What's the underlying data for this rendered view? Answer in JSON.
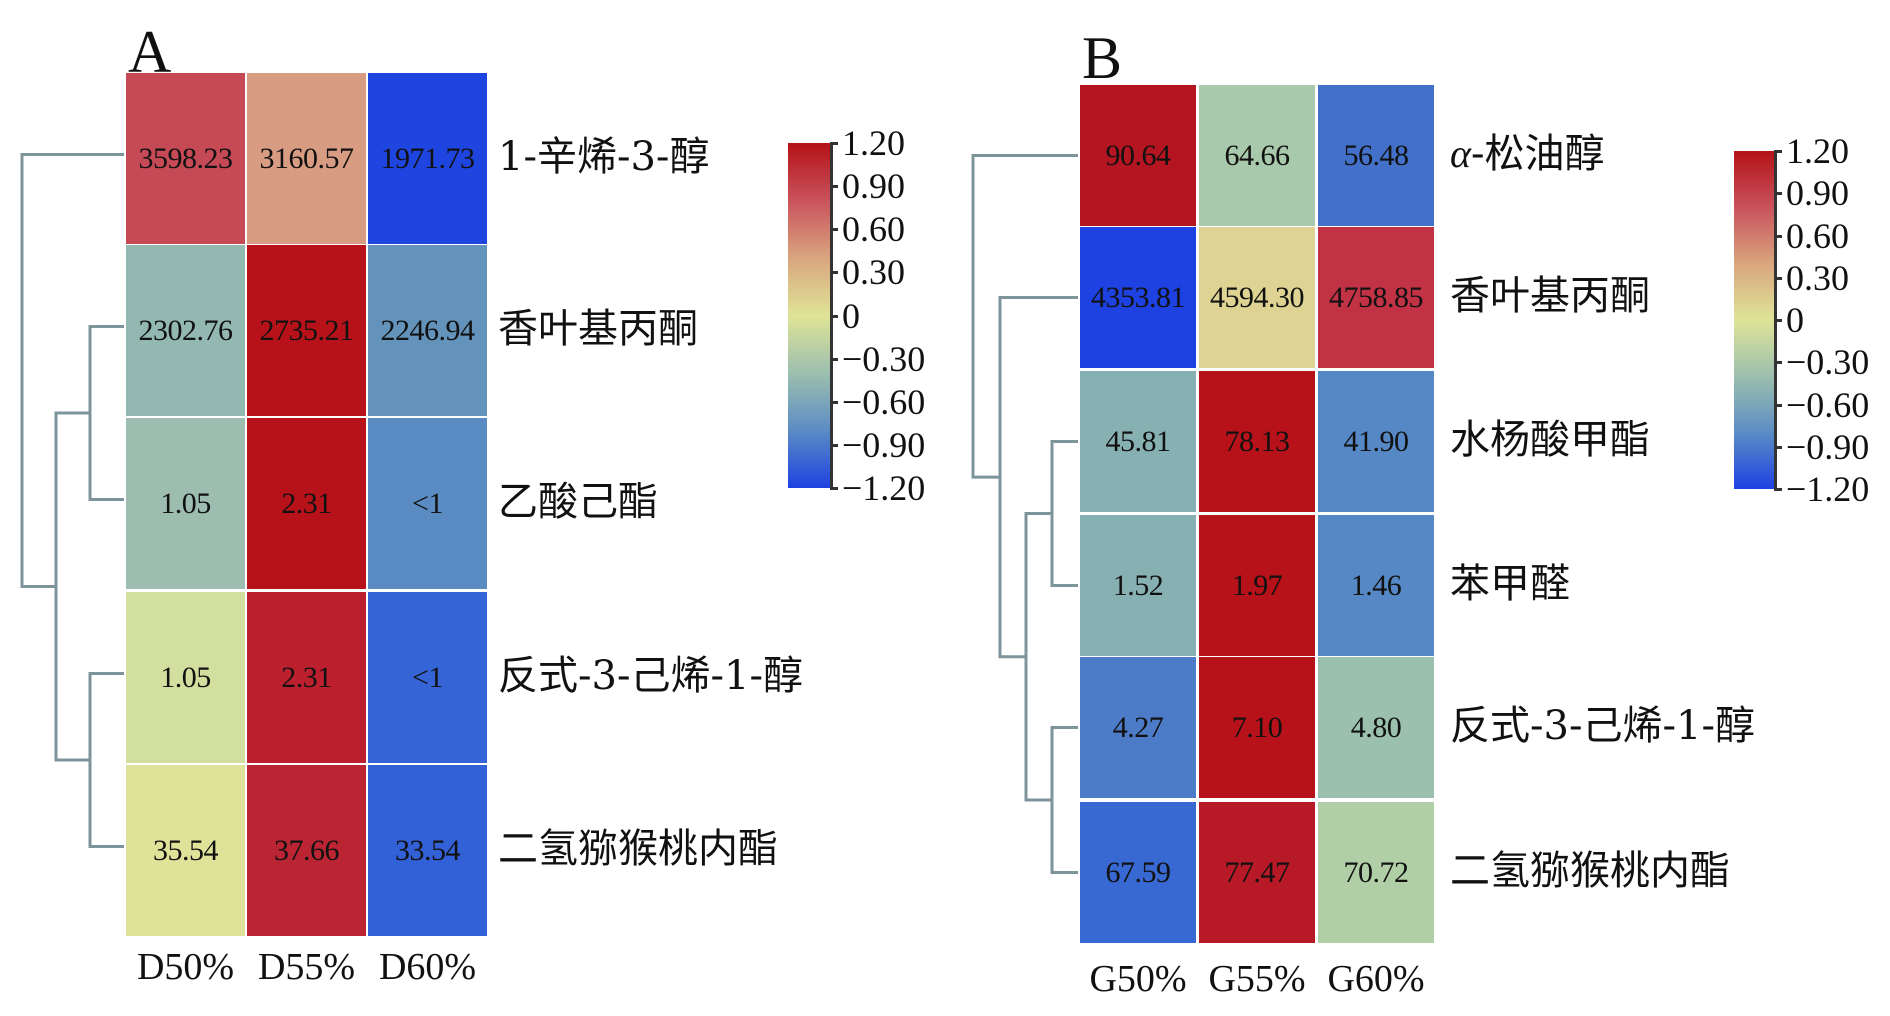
{
  "chart_data": [
    {
      "type": "heatmap",
      "panel": "A",
      "title": "A",
      "columns": [
        "D50%",
        "D55%",
        "D60%"
      ],
      "rows": [
        "1-辛烯-3-醇",
        "香叶基丙酮",
        "乙酸己酯",
        "反式-3-己烯-1-醇",
        "二氢猕猴桃内酯"
      ],
      "values": [
        [
          "3598.23",
          "3160.57",
          "1971.73"
        ],
        [
          "2302.76",
          "2735.21",
          "2246.94"
        ],
        [
          "1.05",
          "2.31",
          "<1"
        ],
        [
          "1.05",
          "2.31",
          "<1"
        ],
        [
          "35.54",
          "37.66",
          "33.54"
        ]
      ],
      "cell_colors": [
        [
          "#c54a56",
          "#d89c82",
          "#1f45e0"
        ],
        [
          "#92b8b1",
          "#b71219",
          "#6393bb"
        ],
        [
          "#9cbdb0",
          "#b71219",
          "#5a8bc2"
        ],
        [
          "#d3df9e",
          "#bc202f",
          "#3564d6"
        ],
        [
          "#dfe39a",
          "#bb2533",
          "#3260d6"
        ]
      ],
      "dendrogram": "((1-辛烯-3-醇),((香叶基丙酮,乙酸己酯),(反式-3-己烯-1-醇,二氢猕猴桃内酯)))",
      "colorbar": {
        "range": [
          -1.2,
          1.2
        ],
        "ticks": [
          "1.20",
          "0.90",
          "0.60",
          "0.30",
          "0",
          "−0.30",
          "−0.60",
          "−0.90",
          "−1.20"
        ],
        "colors": [
          "#1d42e1",
          "#5b8cc4",
          "#9cbfae",
          "#dfe497",
          "#d9a57e",
          "#c9525c",
          "#b41217"
        ]
      }
    },
    {
      "type": "heatmap",
      "panel": "B",
      "title": "B",
      "columns": [
        "G50%",
        "G55%",
        "G60%"
      ],
      "rows": [
        "α-松油醇",
        "香叶基丙酮",
        "水杨酸甲酯",
        "苯甲醛",
        "反式-3-己烯-1-醇",
        "二氢猕猴桃内酯"
      ],
      "row_prefix_italic": [
        "α",
        "",
        "",
        "",
        "",
        ""
      ],
      "values": [
        [
          "90.64",
          "64.66",
          "56.48"
        ],
        [
          "4353.81",
          "4594.30",
          "4758.85"
        ],
        [
          "45.81",
          "78.13",
          "41.90"
        ],
        [
          "1.52",
          "1.97",
          "1.46"
        ],
        [
          "4.27",
          "7.10",
          "4.80"
        ],
        [
          "67.59",
          "77.47",
          "70.72"
        ]
      ],
      "cell_colors": [
        [
          "#b41520",
          "#a8c9ab",
          "#4371c9"
        ],
        [
          "#1d42e1",
          "#ded392",
          "#c13245"
        ],
        [
          "#87b0b3",
          "#b71219",
          "#5588c4"
        ],
        [
          "#87b0b3",
          "#b71219",
          "#5588c4"
        ],
        [
          "#4c7bc7",
          "#b71219",
          "#9bc0ae"
        ],
        [
          "#3868d1",
          "#b81926",
          "#b1cfa6"
        ]
      ],
      "dendrogram": "((α-松油醇),((香叶基丙酮),((水杨酸甲酯,苯甲醛),(反式-3-己烯-1-醇,二氢猕猴桃内酯))))",
      "colorbar": {
        "range": [
          -1.2,
          1.2
        ],
        "ticks": [
          "1.20",
          "0.90",
          "0.60",
          "0.30",
          "0",
          "−0.30",
          "−0.60",
          "−0.90",
          "−1.20"
        ],
        "colors": [
          "#1d42e1",
          "#5b8cc4",
          "#9cbfae",
          "#dfe497",
          "#d9a57e",
          "#c9525c",
          "#b41217"
        ]
      }
    }
  ],
  "style": {
    "dendro_color": "#7e949b",
    "text_color": "#111111"
  }
}
